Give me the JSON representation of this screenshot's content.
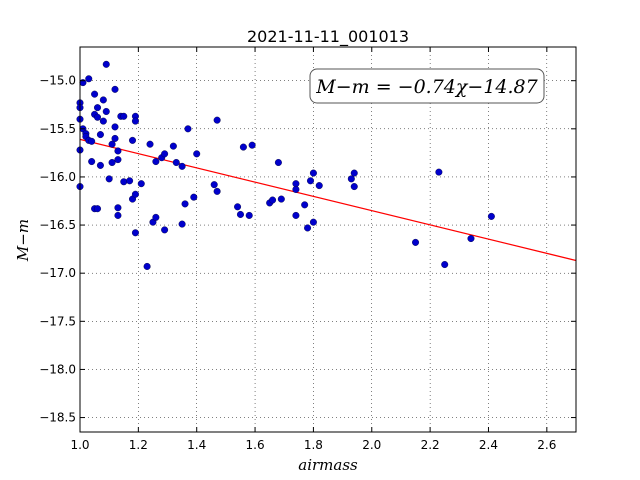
{
  "chart_data": {
    "type": "scatter",
    "title": "2021-11-11_001013",
    "xlabel": "airmass",
    "ylabel": "M−m",
    "xlim": [
      1.0,
      2.7
    ],
    "ylim": [
      -18.65,
      -14.65
    ],
    "y_inverted": true,
    "grid": true,
    "grid_style": "dotted",
    "x_ticks": [
      "1.0",
      "1.2",
      "1.4",
      "1.6",
      "1.8",
      "2.0",
      "2.2",
      "2.4",
      "2.6"
    ],
    "y_ticks": [
      "−15.0",
      "−15.5",
      "−16.0",
      "−16.5",
      "−17.0",
      "−17.5",
      "−18.0",
      "−18.5"
    ],
    "annotation": "M−m = −0.74χ−14.87",
    "fit": {
      "slope": -0.74,
      "intercept": -14.87,
      "color": "#ff0000"
    },
    "point_color": "#0000cc",
    "points": [
      [
        1.0,
        -15.23
      ],
      [
        1.0,
        -15.28
      ],
      [
        1.0,
        -15.4
      ],
      [
        1.01,
        -15.02
      ],
      [
        1.01,
        -15.5
      ],
      [
        1.02,
        -15.55
      ],
      [
        1.02,
        -15.58
      ],
      [
        1.03,
        -15.62
      ],
      [
        1.0,
        -15.72
      ],
      [
        1.0,
        -16.1
      ],
      [
        1.03,
        -14.98
      ],
      [
        1.04,
        -15.63
      ],
      [
        1.04,
        -15.84
      ],
      [
        1.05,
        -15.14
      ],
      [
        1.05,
        -15.35
      ],
      [
        1.05,
        -16.33
      ],
      [
        1.06,
        -15.28
      ],
      [
        1.06,
        -15.38
      ],
      [
        1.06,
        -16.33
      ],
      [
        1.07,
        -15.56
      ],
      [
        1.07,
        -15.88
      ],
      [
        1.08,
        -15.2
      ],
      [
        1.08,
        -15.42
      ],
      [
        1.09,
        -14.83
      ],
      [
        1.09,
        -15.32
      ],
      [
        1.1,
        -16.02
      ],
      [
        1.11,
        -15.85
      ],
      [
        1.11,
        -15.66
      ],
      [
        1.12,
        -15.09
      ],
      [
        1.12,
        -15.48
      ],
      [
        1.12,
        -15.6
      ],
      [
        1.13,
        -15.73
      ],
      [
        1.13,
        -15.82
      ],
      [
        1.13,
        -16.32
      ],
      [
        1.13,
        -16.4
      ],
      [
        1.14,
        -15.37
      ],
      [
        1.15,
        -15.37
      ],
      [
        1.15,
        -16.05
      ],
      [
        1.17,
        -16.04
      ],
      [
        1.18,
        -15.62
      ],
      [
        1.18,
        -16.23
      ],
      [
        1.19,
        -15.37
      ],
      [
        1.19,
        -15.42
      ],
      [
        1.19,
        -16.18
      ],
      [
        1.19,
        -16.58
      ],
      [
        1.21,
        -16.07
      ],
      [
        1.23,
        -16.93
      ],
      [
        1.24,
        -15.66
      ],
      [
        1.25,
        -16.47
      ],
      [
        1.26,
        -15.84
      ],
      [
        1.26,
        -16.42
      ],
      [
        1.28,
        -15.8
      ],
      [
        1.29,
        -15.76
      ],
      [
        1.29,
        -16.55
      ],
      [
        1.32,
        -15.68
      ],
      [
        1.33,
        -15.85
      ],
      [
        1.35,
        -15.89
      ],
      [
        1.35,
        -16.49
      ],
      [
        1.36,
        -16.28
      ],
      [
        1.37,
        -15.5
      ],
      [
        1.39,
        -16.21
      ],
      [
        1.4,
        -15.76
      ],
      [
        1.46,
        -16.08
      ],
      [
        1.47,
        -16.15
      ],
      [
        1.47,
        -15.41
      ],
      [
        1.54,
        -16.31
      ],
      [
        1.55,
        -16.39
      ],
      [
        1.56,
        -15.69
      ],
      [
        1.58,
        -16.4
      ],
      [
        1.59,
        -15.67
      ],
      [
        1.65,
        -16.27
      ],
      [
        1.66,
        -16.24
      ],
      [
        1.68,
        -15.85
      ],
      [
        1.69,
        -16.23
      ],
      [
        1.74,
        -16.07
      ],
      [
        1.74,
        -16.13
      ],
      [
        1.74,
        -16.4
      ],
      [
        1.77,
        -16.29
      ],
      [
        1.78,
        -16.53
      ],
      [
        1.79,
        -16.04
      ],
      [
        1.8,
        -15.96
      ],
      [
        1.8,
        -16.47
      ],
      [
        1.82,
        -16.09
      ],
      [
        1.93,
        -16.02
      ],
      [
        1.94,
        -15.96
      ],
      [
        1.94,
        -16.1
      ],
      [
        2.15,
        -16.68
      ],
      [
        2.23,
        -15.95
      ],
      [
        2.25,
        -16.91
      ],
      [
        2.34,
        -16.64
      ],
      [
        2.41,
        -16.41
      ]
    ]
  }
}
